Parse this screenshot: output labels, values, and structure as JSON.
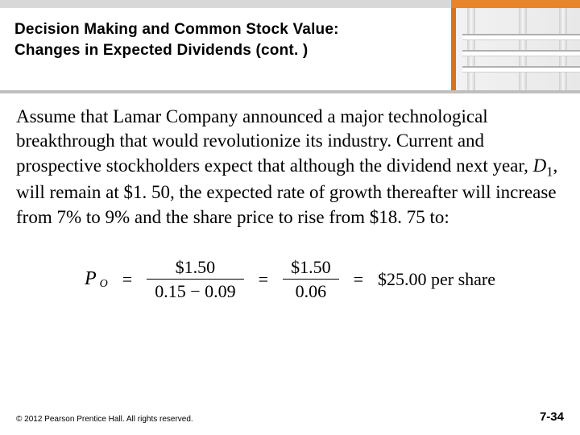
{
  "colors": {
    "topbar_left": "#d9d9d9",
    "topbar_right": "#e8852c",
    "photo_border": "#d9721e",
    "divider": "#bfbfbf",
    "text": "#000000",
    "background": "#ffffff"
  },
  "header": {
    "title_line1": "Decision Making and Common Stock Value:",
    "title_line2": "Changes in Expected Dividends (cont. )",
    "title_fontsize": 19,
    "title_weight": "bold"
  },
  "body": {
    "paragraph": "Assume that Lamar Company announced a major technological breakthrough that would revolutionize its industry. Current and prospective stockholders expect that although the dividend next year, ",
    "d1_symbol": "D",
    "d1_sub": "1",
    "paragraph_after_d1": ", will remain at $1. 50, the expected rate of growth thereafter will increase from 7% to 9% and the share price to rise from $18. 75 to:",
    "fontsize": 23,
    "font_family": "Times New Roman"
  },
  "equation": {
    "lhs_symbol": "P",
    "lhs_sub": "O",
    "frac1_num": "$1.50",
    "frac1_den": "0.15 − 0.09",
    "frac2_num": "$1.50",
    "frac2_den": "0.06",
    "result": "$25.00 per share",
    "fontsize": 22
  },
  "footer": {
    "copyright": "© 2012 Pearson Prentice Hall. All rights reserved.",
    "page": "7-34",
    "copyright_fontsize": 10,
    "page_fontsize": 15
  }
}
